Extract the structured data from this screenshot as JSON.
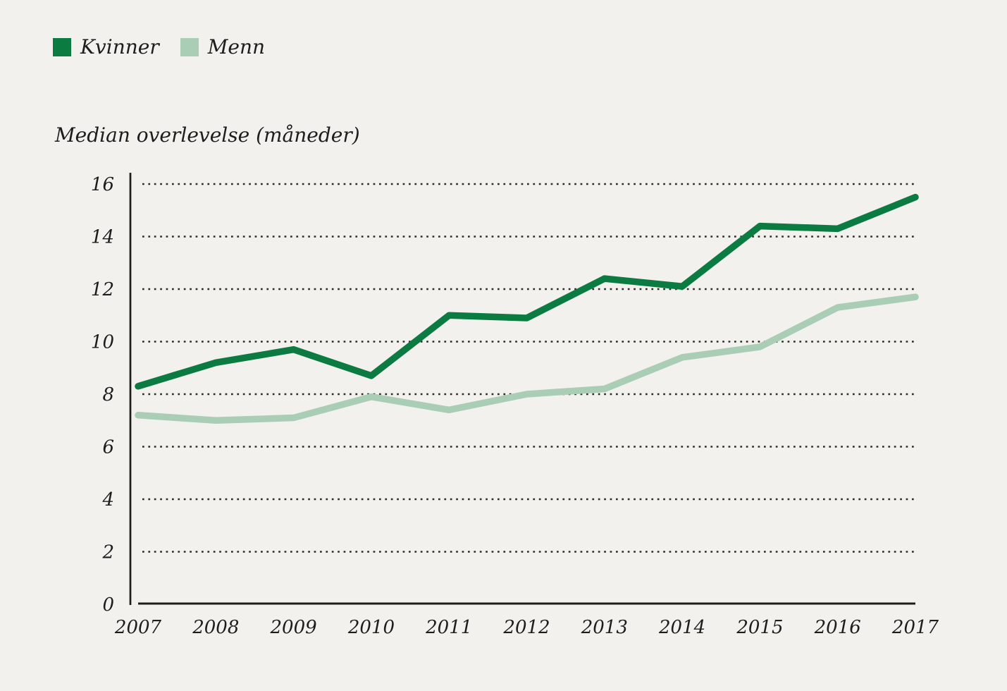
{
  "colors": {
    "background": "#f2f1ee",
    "text": "#1d1d1b",
    "axis": "#1d1d1b",
    "gridline": "#2b2a27",
    "kvinner": "#0c7b42",
    "menn": "#a9cdb5"
  },
  "legend": {
    "items": [
      {
        "label": "Kvinner",
        "color": "#0c7b42"
      },
      {
        "label": "Menn",
        "color": "#a9cdb5"
      }
    ]
  },
  "chart_data": {
    "type": "line",
    "title": "Median overlevelse (måneder)",
    "xlabel": "",
    "ylabel": "Median overlevelse (måneder)",
    "x": [
      2007,
      2008,
      2009,
      2010,
      2011,
      2012,
      2013,
      2014,
      2015,
      2016,
      2017
    ],
    "series": [
      {
        "name": "Kvinner",
        "color": "#0c7b42",
        "values": [
          8.3,
          9.2,
          9.7,
          8.7,
          11.0,
          10.9,
          12.4,
          12.1,
          14.4,
          14.3,
          15.5
        ]
      },
      {
        "name": "Menn",
        "color": "#a9cdb5",
        "values": [
          7.2,
          7.0,
          7.1,
          7.9,
          7.4,
          8.0,
          8.2,
          9.4,
          9.8,
          11.3,
          11.7
        ]
      }
    ],
    "ylim": [
      0,
      16
    ],
    "yticks": [
      0,
      2,
      4,
      6,
      8,
      10,
      12,
      14,
      16
    ],
    "grid": "horizontal-dotted",
    "legend_position": "top-left"
  }
}
